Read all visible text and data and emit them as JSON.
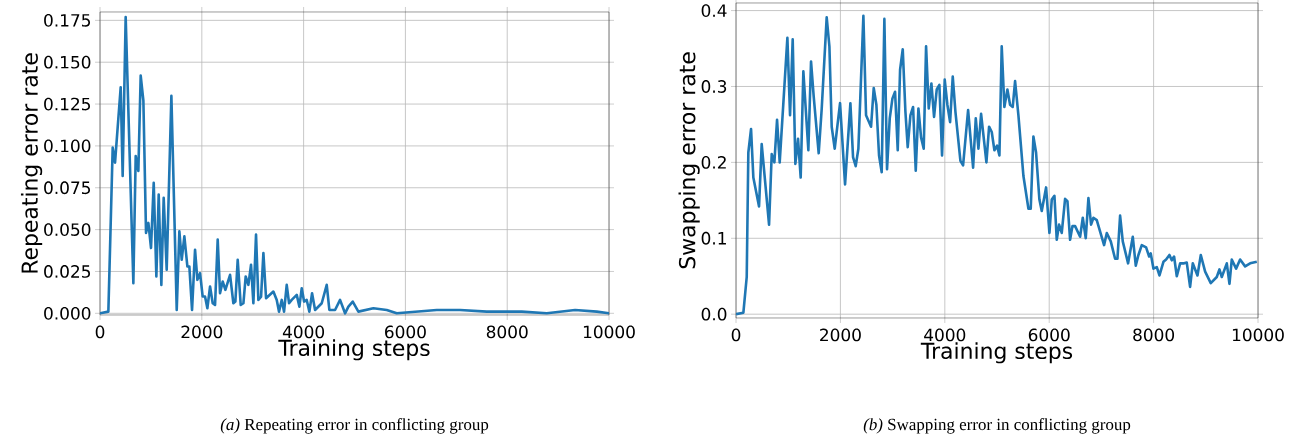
{
  "chart_data": [
    {
      "type": "line",
      "title": "*(a)* Repeating error in conflicting group",
      "xlabel": "Training steps",
      "ylabel": "Repeating error rate",
      "grid": true,
      "xlim": [
        0,
        10000
      ],
      "ylim": [
        -0.001,
        0.18
      ],
      "xticks": [
        0,
        2000,
        4000,
        6000,
        8000,
        10000
      ],
      "yticks": [
        {
          "value": 0,
          "label": "0.000"
        },
        {
          "value": 0.025,
          "label": "0.025"
        },
        {
          "value": 0.05,
          "label": "0.050"
        },
        {
          "value": 0.075,
          "label": "0.075"
        },
        {
          "value": 0.1,
          "label": "0.100"
        },
        {
          "value": 0.125,
          "label": "0.125"
        },
        {
          "value": 0.15,
          "label": "0.150"
        },
        {
          "value": 0.175,
          "label": "0.175"
        }
      ],
      "series": [
        {
          "color": "#1f77b4",
          "x": [
            0,
            164,
            249,
            295,
            406,
            445,
            504,
            655,
            701,
            753,
            799,
            852,
            904,
            950,
            1002,
            1055,
            1107,
            1153,
            1205,
            1251,
            1310,
            1402,
            1507,
            1559,
            1605,
            1657,
            1716,
            1755,
            1808,
            1867,
            1913,
            1965,
            2017,
            2063,
            2109,
            2162,
            2214,
            2260,
            2312,
            2358,
            2410,
            2463,
            2555,
            2620,
            2659,
            2705,
            2764,
            2817,
            2862,
            2915,
            2967,
            3013,
            3065,
            3111,
            3164,
            3210,
            3262,
            3406,
            3472,
            3517,
            3570,
            3616,
            3668,
            3714,
            3766,
            3865,
            3917,
            3963,
            4009,
            4061,
            4113,
            4166,
            4225,
            4356,
            4454,
            4506,
            4618,
            4716,
            4814,
            4880,
            4965,
            5076,
            5371,
            5633,
            5830,
            6616,
            7074,
            7598,
            8286,
            8777,
            9334,
            9760,
            10000
          ],
          "values": [
            0,
            0.001,
            0.099,
            0.09,
            0.135,
            0.082,
            0.177,
            0.018,
            0.094,
            0.085,
            0.142,
            0.127,
            0.048,
            0.054,
            0.039,
            0.078,
            0.022,
            0.071,
            0.017,
            0.069,
            0.026,
            0.13,
            0.002,
            0.049,
            0.032,
            0.046,
            0.028,
            0.028,
            0.002,
            0.038,
            0.02,
            0.024,
            0.01,
            0.01,
            0.003,
            0.016,
            0.006,
            0.005,
            0.044,
            0.012,
            0.019,
            0.014,
            0.023,
            0.006,
            0.007,
            0.032,
            0.005,
            0.006,
            0.022,
            0.017,
            0.029,
            0.006,
            0.047,
            0.008,
            0.01,
            0.036,
            0.009,
            0.013,
            0.008,
            0.001,
            0.008,
            0.001,
            0.017,
            0.006,
            0.008,
            0.011,
            0.004,
            0.015,
            0.007,
            0.008,
            0.001,
            0.012,
            0.002,
            0.006,
            0.017,
            0.002,
            0.002,
            0.008,
            0,
            0.004,
            0.007,
            0.001,
            0.003,
            0.002,
            0,
            0.002,
            0.002,
            0.001,
            0.001,
            0,
            0.002,
            0.001,
            0
          ]
        }
      ]
    },
    {
      "type": "line",
      "title": "*(b)* Swapping error in conflicting group",
      "xlabel": "Training steps",
      "ylabel": "Swapping error rate",
      "grid": true,
      "xlim": [
        0,
        10000
      ],
      "ylim": [
        -0.005,
        0.41
      ],
      "xticks": [
        0,
        2000,
        4000,
        6000,
        8000,
        10000
      ],
      "yticks": [
        {
          "value": 0,
          "label": "0.0"
        },
        {
          "value": 0.1,
          "label": "0.1"
        },
        {
          "value": 0.2,
          "label": "0.2"
        },
        {
          "value": 0.3,
          "label": "0.3"
        },
        {
          "value": 0.4,
          "label": "0.4"
        }
      ],
      "series": [
        {
          "color": "#1f77b4",
          "x": [
            0,
            141,
            205,
            236,
            288,
            332,
            441,
            492,
            633,
            684,
            735,
            786,
            837,
            984,
            1035,
            1086,
            1137,
            1188,
            1239,
            1290,
            1386,
            1437,
            1488,
            1584,
            1642,
            1737,
            1789,
            1833,
            1891,
            1993,
            2089,
            2191,
            2242,
            2293,
            2344,
            2440,
            2491,
            2587,
            2638,
            2689,
            2740,
            2791,
            2842,
            2893,
            2945,
            2996,
            3047,
            3098,
            3143,
            3194,
            3245,
            3289,
            3341,
            3392,
            3443,
            3494,
            3545,
            3596,
            3641,
            3692,
            3743,
            3794,
            3845,
            3896,
            3947,
            3998,
            4049,
            4101,
            4152,
            4203,
            4299,
            4350,
            4446,
            4542,
            4593,
            4644,
            4695,
            4797,
            4848,
            4899,
            4950,
            5001,
            5046,
            5090,
            5141,
            5199,
            5250,
            5301,
            5346,
            5410,
            5506,
            5602,
            5646,
            5697,
            5748,
            5812,
            5857,
            5940,
            6004,
            6049,
            6100,
            6144,
            6189,
            6240,
            6304,
            6349,
            6400,
            6445,
            6496,
            6592,
            6643,
            6700,
            6751,
            6802,
            6847,
            6911,
            7051,
            7103,
            7179,
            7262,
            7307,
            7358,
            7409,
            7511,
            7601,
            7658,
            7709,
            7773,
            7856,
            7914,
            7945,
            7997,
            8061,
            8112,
            8188,
            8239,
            8303,
            8348,
            8392,
            8444,
            8508,
            8584,
            8635,
            8699,
            8750,
            8840,
            8904,
            8987,
            9095,
            9210,
            9261,
            9306,
            9402,
            9453,
            9497,
            9580,
            9657,
            9753,
            9849,
            9977
          ],
          "values": [
            0,
            0.002,
            0.049,
            0.213,
            0.244,
            0.18,
            0.142,
            0.224,
            0.118,
            0.211,
            0.2,
            0.256,
            0.2,
            0.364,
            0.262,
            0.362,
            0.198,
            0.231,
            0.18,
            0.32,
            0.216,
            0.333,
            0.287,
            0.212,
            0.271,
            0.391,
            0.353,
            0.247,
            0.218,
            0.278,
            0.171,
            0.278,
            0.207,
            0.195,
            0.218,
            0.393,
            0.262,
            0.247,
            0.298,
            0.276,
            0.209,
            0.187,
            0.389,
            0.191,
            0.258,
            0.284,
            0.293,
            0.216,
            0.322,
            0.349,
            0.267,
            0.22,
            0.262,
            0.273,
            0.189,
            0.271,
            0.233,
            0.218,
            0.353,
            0.271,
            0.304,
            0.26,
            0.296,
            0.302,
            0.209,
            0.309,
            0.276,
            0.253,
            0.313,
            0.267,
            0.202,
            0.196,
            0.269,
            0.193,
            0.258,
            0.218,
            0.264,
            0.2,
            0.247,
            0.24,
            0.216,
            0.222,
            0.209,
            0.353,
            0.273,
            0.296,
            0.276,
            0.273,
            0.307,
            0.262,
            0.182,
            0.139,
            0.139,
            0.234,
            0.213,
            0.151,
            0.136,
            0.167,
            0.107,
            0.151,
            0.156,
            0.098,
            0.118,
            0.107,
            0.152,
            0.149,
            0.098,
            0.116,
            0.116,
            0.102,
            0.127,
            0.1,
            0.153,
            0.118,
            0.127,
            0.124,
            0.091,
            0.107,
            0.096,
            0.073,
            0.073,
            0.13,
            0.096,
            0.067,
            0.102,
            0.064,
            0.078,
            0.091,
            0.088,
            0.076,
            0.08,
            0.06,
            0.062,
            0.051,
            0.069,
            0.072,
            0.078,
            0.071,
            0.076,
            0.05,
            0.067,
            0.067,
            0.068,
            0.036,
            0.067,
            0.051,
            0.078,
            0.056,
            0.041,
            0.049,
            0.059,
            0.049,
            0.067,
            0.04,
            0.072,
            0.06,
            0.072,
            0.063,
            0.067,
            0.069
          ]
        }
      ]
    }
  ]
}
